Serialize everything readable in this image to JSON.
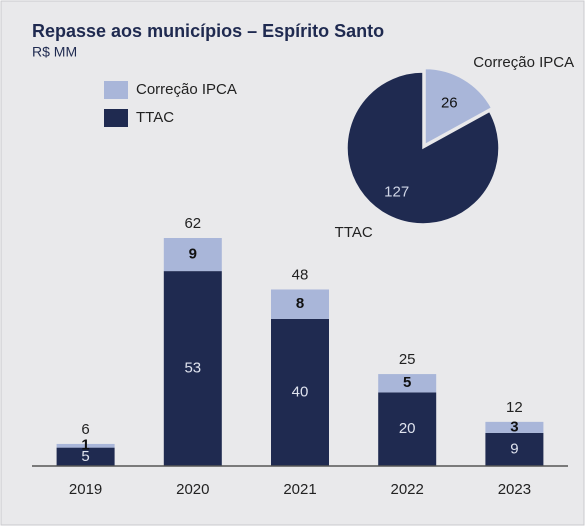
{
  "chart_data": [
    {
      "type": "bar",
      "stacked": true,
      "title": "Repasse aos municípios – Espírito Santo",
      "subtitle": "R$ MM",
      "categories": [
        "2019",
        "2020",
        "2021",
        "2022",
        "2023"
      ],
      "series": [
        {
          "name": "TTAC",
          "color": "#1f2a50",
          "values": [
            5,
            53,
            40,
            20,
            9
          ]
        },
        {
          "name": "Correção IPCA",
          "color": "#a9b6d9",
          "values": [
            1,
            9,
            8,
            5,
            3
          ]
        }
      ],
      "totals": [
        6,
        62,
        48,
        25,
        12
      ]
    },
    {
      "type": "pie",
      "categories": [
        "Correção IPCA",
        "TTAC"
      ],
      "values": [
        26,
        127
      ],
      "colors": [
        "#a9b6d9",
        "#1f2a50"
      ]
    }
  ]
}
